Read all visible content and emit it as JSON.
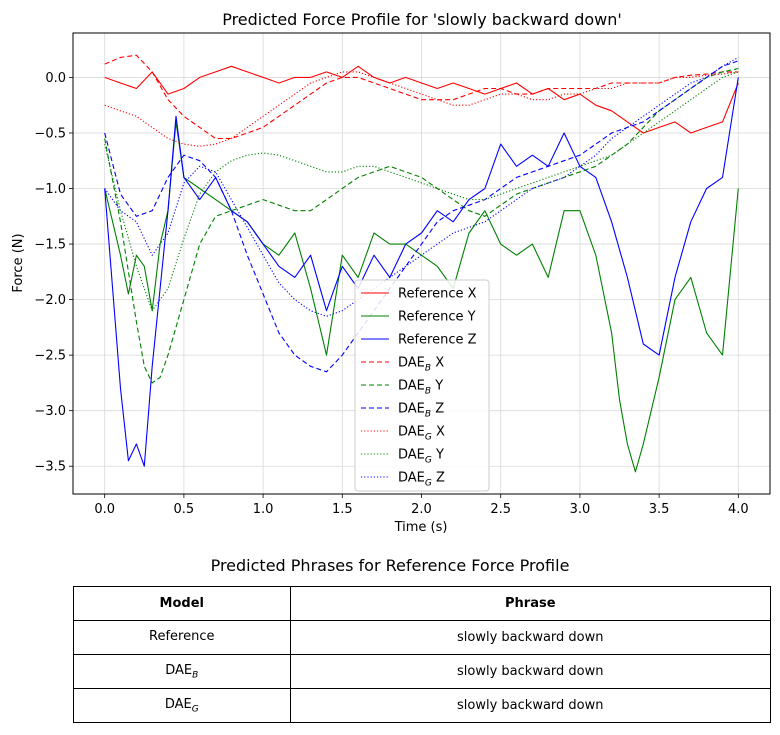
{
  "chart_data": {
    "type": "line",
    "title": "Predicted Force Profile for 'slowly backward down'",
    "xlabel": "Time (s)",
    "ylabel": "Force (N)",
    "xlim": [
      -0.2,
      4.2
    ],
    "ylim": [
      -3.75,
      0.4
    ],
    "xticks": [
      0.0,
      0.5,
      1.0,
      1.5,
      2.0,
      2.5,
      3.0,
      3.5,
      4.0
    ],
    "xtick_labels": [
      "0.0",
      "0.5",
      "1.0",
      "1.5",
      "2.0",
      "2.5",
      "3.0",
      "3.5",
      "4.0"
    ],
    "yticks": [
      0.0,
      -0.5,
      -1.0,
      -1.5,
      -2.0,
      -2.5,
      -3.0,
      -3.5
    ],
    "ytick_labels": [
      "0.0",
      "−0.5",
      "−1.0",
      "−1.5",
      "−2.0",
      "−2.5",
      "−3.0",
      "−3.5"
    ],
    "grid": true,
    "legend_position": "bottom-center",
    "series": [
      {
        "name": "Reference X",
        "color": "#ff0000",
        "style": "solid",
        "legend": {
          "base": "Reference X"
        },
        "x": [
          0.0,
          0.1,
          0.2,
          0.3,
          0.4,
          0.5,
          0.6,
          0.7,
          0.8,
          0.9,
          1.0,
          1.1,
          1.2,
          1.3,
          1.4,
          1.5,
          1.6,
          1.7,
          1.8,
          1.9,
          2.0,
          2.1,
          2.2,
          2.3,
          2.4,
          2.5,
          2.6,
          2.7,
          2.8,
          2.9,
          3.0,
          3.1,
          3.2,
          3.3,
          3.4,
          3.5,
          3.6,
          3.7,
          3.8,
          3.9,
          4.0
        ],
        "y": [
          0.0,
          -0.05,
          -0.1,
          0.05,
          -0.15,
          -0.1,
          0.0,
          0.05,
          0.1,
          0.05,
          0.0,
          -0.05,
          0.0,
          0.0,
          0.05,
          0.0,
          0.1,
          0.0,
          -0.05,
          0.0,
          -0.05,
          -0.1,
          -0.05,
          -0.1,
          -0.15,
          -0.1,
          -0.05,
          -0.15,
          -0.1,
          -0.2,
          -0.15,
          -0.25,
          -0.3,
          -0.4,
          -0.5,
          -0.45,
          -0.4,
          -0.5,
          -0.45,
          -0.4,
          -0.05
        ]
      },
      {
        "name": "Reference Y",
        "color": "#008000",
        "style": "solid",
        "legend": {
          "base": "Reference Y"
        },
        "x": [
          0.0,
          0.05,
          0.1,
          0.15,
          0.2,
          0.25,
          0.3,
          0.35,
          0.4,
          0.45,
          0.5,
          0.6,
          0.7,
          0.8,
          0.9,
          1.0,
          1.1,
          1.2,
          1.3,
          1.4,
          1.5,
          1.6,
          1.7,
          1.8,
          1.9,
          2.0,
          2.1,
          2.2,
          2.3,
          2.4,
          2.5,
          2.6,
          2.7,
          2.8,
          2.9,
          3.0,
          3.1,
          3.2,
          3.25,
          3.3,
          3.35,
          3.4,
          3.5,
          3.6,
          3.7,
          3.8,
          3.9,
          4.0
        ],
        "y": [
          -1.0,
          -1.3,
          -1.6,
          -1.95,
          -1.6,
          -1.7,
          -2.1,
          -1.5,
          -1.2,
          -0.4,
          -0.9,
          -1.0,
          -1.1,
          -1.2,
          -1.3,
          -1.5,
          -1.6,
          -1.4,
          -1.9,
          -2.5,
          -1.6,
          -1.8,
          -1.4,
          -1.5,
          -1.5,
          -1.6,
          -1.7,
          -1.9,
          -1.4,
          -1.2,
          -1.5,
          -1.6,
          -1.5,
          -1.8,
          -1.2,
          -1.2,
          -1.6,
          -2.3,
          -2.9,
          -3.3,
          -3.55,
          -3.3,
          -2.7,
          -2.0,
          -1.8,
          -2.3,
          -2.5,
          -1.0
        ]
      },
      {
        "name": "Reference Z",
        "color": "#0000ff",
        "style": "solid",
        "legend": {
          "base": "Reference Z"
        },
        "x": [
          0.0,
          0.05,
          0.1,
          0.15,
          0.2,
          0.25,
          0.3,
          0.35,
          0.4,
          0.45,
          0.5,
          0.6,
          0.7,
          0.8,
          0.9,
          1.0,
          1.1,
          1.2,
          1.3,
          1.4,
          1.5,
          1.6,
          1.7,
          1.8,
          1.9,
          2.0,
          2.1,
          2.2,
          2.3,
          2.4,
          2.5,
          2.6,
          2.7,
          2.8,
          2.9,
          3.0,
          3.1,
          3.2,
          3.3,
          3.4,
          3.5,
          3.6,
          3.7,
          3.8,
          3.9,
          4.0
        ],
        "y": [
          -1.0,
          -1.9,
          -2.8,
          -3.45,
          -3.3,
          -3.5,
          -2.6,
          -1.9,
          -1.2,
          -0.35,
          -0.9,
          -1.1,
          -0.9,
          -1.2,
          -1.3,
          -1.5,
          -1.7,
          -1.8,
          -1.6,
          -2.1,
          -1.7,
          -1.9,
          -1.6,
          -1.8,
          -1.5,
          -1.4,
          -1.2,
          -1.3,
          -1.1,
          -1.0,
          -0.6,
          -0.8,
          -0.7,
          -0.8,
          -0.5,
          -0.8,
          -0.9,
          -1.3,
          -1.8,
          -2.4,
          -2.5,
          -1.8,
          -1.3,
          -1.0,
          -0.9,
          0.0
        ]
      },
      {
        "name": "DAE_B X",
        "color": "#ff0000",
        "style": "dashed",
        "legend": {
          "base": "DAE",
          "sub": "B",
          "suffix": " X"
        },
        "x": [
          0.0,
          0.1,
          0.2,
          0.3,
          0.4,
          0.5,
          0.6,
          0.7,
          0.8,
          0.9,
          1.0,
          1.1,
          1.2,
          1.3,
          1.4,
          1.5,
          1.6,
          1.7,
          1.8,
          1.9,
          2.0,
          2.1,
          2.2,
          2.3,
          2.4,
          2.5,
          2.6,
          2.7,
          2.8,
          2.9,
          3.0,
          3.1,
          3.2,
          3.3,
          3.4,
          3.5,
          3.6,
          3.7,
          3.8,
          3.9,
          4.0
        ],
        "y": [
          0.12,
          0.18,
          0.2,
          0.05,
          -0.2,
          -0.35,
          -0.45,
          -0.55,
          -0.55,
          -0.5,
          -0.45,
          -0.35,
          -0.25,
          -0.15,
          -0.05,
          0.0,
          0.0,
          -0.05,
          -0.1,
          -0.15,
          -0.2,
          -0.2,
          -0.2,
          -0.15,
          -0.1,
          -0.1,
          -0.15,
          -0.15,
          -0.1,
          -0.1,
          -0.1,
          -0.1,
          -0.05,
          -0.05,
          -0.05,
          -0.05,
          0.0,
          0.02,
          0.03,
          0.05,
          0.05
        ]
      },
      {
        "name": "DAE_B Y",
        "color": "#008000",
        "style": "dashed",
        "legend": {
          "base": "DAE",
          "sub": "B",
          "suffix": " Y"
        },
        "x": [
          0.0,
          0.1,
          0.2,
          0.25,
          0.3,
          0.35,
          0.4,
          0.5,
          0.6,
          0.7,
          0.8,
          0.9,
          1.0,
          1.1,
          1.2,
          1.3,
          1.4,
          1.5,
          1.6,
          1.7,
          1.8,
          1.9,
          2.0,
          2.1,
          2.2,
          2.3,
          2.4,
          2.5,
          2.6,
          2.7,
          2.8,
          2.9,
          3.0,
          3.1,
          3.2,
          3.3,
          3.4,
          3.5,
          3.6,
          3.7,
          3.8,
          3.9,
          4.0
        ],
        "y": [
          -0.55,
          -1.3,
          -2.2,
          -2.6,
          -2.75,
          -2.7,
          -2.5,
          -2.0,
          -1.5,
          -1.25,
          -1.2,
          -1.15,
          -1.1,
          -1.15,
          -1.2,
          -1.2,
          -1.1,
          -1.0,
          -0.9,
          -0.85,
          -0.8,
          -0.85,
          -0.9,
          -1.0,
          -1.1,
          -1.2,
          -1.25,
          -1.15,
          -1.05,
          -1.0,
          -0.95,
          -0.9,
          -0.85,
          -0.8,
          -0.7,
          -0.6,
          -0.45,
          -0.3,
          -0.2,
          -0.1,
          0.0,
          0.05,
          0.08
        ]
      },
      {
        "name": "DAE_B Z",
        "color": "#0000ff",
        "style": "dashed",
        "legend": {
          "base": "DAE",
          "sub": "B",
          "suffix": " Z"
        },
        "x": [
          0.0,
          0.1,
          0.2,
          0.3,
          0.4,
          0.5,
          0.6,
          0.7,
          0.8,
          0.9,
          1.0,
          1.1,
          1.2,
          1.3,
          1.4,
          1.5,
          1.6,
          1.7,
          1.8,
          1.9,
          2.0,
          2.1,
          2.2,
          2.3,
          2.4,
          2.5,
          2.6,
          2.7,
          2.8,
          2.9,
          3.0,
          3.1,
          3.2,
          3.3,
          3.4,
          3.5,
          3.6,
          3.7,
          3.8,
          3.9,
          4.0
        ],
        "y": [
          -0.5,
          -1.05,
          -1.25,
          -1.2,
          -0.9,
          -0.7,
          -0.75,
          -0.9,
          -1.2,
          -1.6,
          -1.95,
          -2.3,
          -2.5,
          -2.6,
          -2.65,
          -2.5,
          -2.3,
          -2.1,
          -1.9,
          -1.7,
          -1.5,
          -1.3,
          -1.2,
          -1.15,
          -1.1,
          -1.0,
          -0.9,
          -0.85,
          -0.8,
          -0.75,
          -0.7,
          -0.6,
          -0.5,
          -0.45,
          -0.4,
          -0.3,
          -0.2,
          -0.1,
          0.0,
          0.1,
          0.15
        ]
      },
      {
        "name": "DAE_G X",
        "color": "#ff0000",
        "style": "dotted",
        "legend": {
          "base": "DAE",
          "sub": "G",
          "suffix": " X"
        },
        "x": [
          0.0,
          0.1,
          0.2,
          0.3,
          0.4,
          0.5,
          0.6,
          0.7,
          0.8,
          0.9,
          1.0,
          1.1,
          1.2,
          1.3,
          1.4,
          1.5,
          1.6,
          1.7,
          1.8,
          1.9,
          2.0,
          2.1,
          2.2,
          2.3,
          2.4,
          2.5,
          2.6,
          2.7,
          2.8,
          2.9,
          3.0,
          3.1,
          3.2,
          3.3,
          3.4,
          3.5,
          3.6,
          3.7,
          3.8,
          3.9,
          4.0
        ],
        "y": [
          -0.25,
          -0.3,
          -0.35,
          -0.45,
          -0.55,
          -0.6,
          -0.62,
          -0.6,
          -0.55,
          -0.45,
          -0.35,
          -0.25,
          -0.15,
          -0.05,
          0.0,
          0.05,
          0.05,
          0.0,
          -0.05,
          -0.1,
          -0.15,
          -0.2,
          -0.25,
          -0.25,
          -0.2,
          -0.15,
          -0.15,
          -0.2,
          -0.2,
          -0.15,
          -0.15,
          -0.1,
          -0.1,
          -0.05,
          -0.05,
          -0.05,
          0.0,
          0.0,
          0.02,
          0.03,
          0.05
        ]
      },
      {
        "name": "DAE_G Y",
        "color": "#008000",
        "style": "dotted",
        "legend": {
          "base": "DAE",
          "sub": "G",
          "suffix": " Y"
        },
        "x": [
          0.0,
          0.1,
          0.2,
          0.3,
          0.4,
          0.5,
          0.6,
          0.7,
          0.8,
          0.9,
          1.0,
          1.1,
          1.2,
          1.3,
          1.4,
          1.5,
          1.6,
          1.7,
          1.8,
          1.9,
          2.0,
          2.1,
          2.2,
          2.3,
          2.4,
          2.5,
          2.6,
          2.7,
          2.8,
          2.9,
          3.0,
          3.1,
          3.2,
          3.3,
          3.4,
          3.5,
          3.6,
          3.7,
          3.8,
          3.9,
          4.0
        ],
        "y": [
          -0.6,
          -1.2,
          -1.7,
          -2.1,
          -1.9,
          -1.45,
          -1.05,
          -0.85,
          -0.75,
          -0.7,
          -0.68,
          -0.7,
          -0.75,
          -0.8,
          -0.85,
          -0.85,
          -0.8,
          -0.8,
          -0.85,
          -0.9,
          -0.95,
          -1.0,
          -1.05,
          -1.1,
          -1.1,
          -1.05,
          -1.0,
          -0.95,
          -0.9,
          -0.85,
          -0.8,
          -0.75,
          -0.7,
          -0.6,
          -0.5,
          -0.4,
          -0.3,
          -0.2,
          -0.1,
          0.0,
          0.05
        ]
      },
      {
        "name": "DAE_G Z",
        "color": "#0000ff",
        "style": "dotted",
        "legend": {
          "base": "DAE",
          "sub": "G",
          "suffix": " Z"
        },
        "x": [
          0.0,
          0.1,
          0.2,
          0.3,
          0.4,
          0.5,
          0.6,
          0.7,
          0.8,
          0.9,
          1.0,
          1.1,
          1.2,
          1.3,
          1.4,
          1.5,
          1.6,
          1.7,
          1.8,
          1.9,
          2.0,
          2.1,
          2.2,
          2.3,
          2.4,
          2.5,
          2.6,
          2.7,
          2.8,
          2.9,
          3.0,
          3.1,
          3.2,
          3.3,
          3.4,
          3.5,
          3.6,
          3.7,
          3.8,
          3.9,
          4.0
        ],
        "y": [
          -1.0,
          -1.2,
          -1.3,
          -1.6,
          -1.4,
          -0.95,
          -0.8,
          -0.85,
          -1.1,
          -1.35,
          -1.6,
          -1.85,
          -2.0,
          -2.1,
          -2.15,
          -2.1,
          -2.0,
          -1.9,
          -1.8,
          -1.7,
          -1.6,
          -1.5,
          -1.4,
          -1.35,
          -1.3,
          -1.2,
          -1.1,
          -1.0,
          -0.95,
          -0.9,
          -0.8,
          -0.7,
          -0.55,
          -0.45,
          -0.35,
          -0.25,
          -0.15,
          -0.05,
          0.0,
          0.1,
          0.18
        ]
      }
    ]
  },
  "table": {
    "title": "Predicted Phrases for Reference Force Profile",
    "headers": {
      "model": "Model",
      "phrase": "Phrase"
    },
    "rows": [
      {
        "model": "Reference",
        "model_sub": "",
        "phrase": "slowly backward down"
      },
      {
        "model": "DAE",
        "model_sub": "B",
        "phrase": "slowly backward down"
      },
      {
        "model": "DAE",
        "model_sub": "G",
        "phrase": "slowly backward down"
      }
    ]
  }
}
